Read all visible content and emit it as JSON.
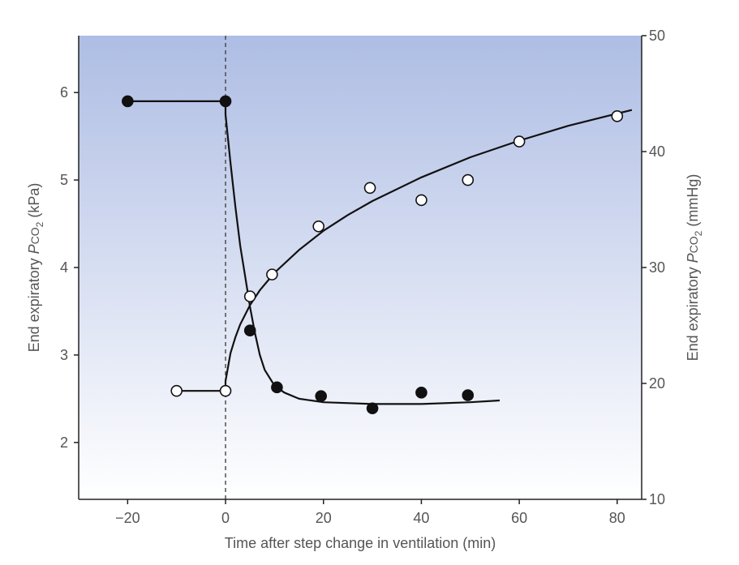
{
  "chart_data": {
    "type": "scatter",
    "xlabel": "Time after step change in ventilation (min)",
    "ylabel_left": {
      "pre": "End expiratory ",
      "var": "P",
      "co": "CO",
      "sub": "2",
      "unit": " (kPa)"
    },
    "ylabel_right": {
      "pre": "End expiratory ",
      "var": "P",
      "co": "CO",
      "sub": "2",
      "unit": " (mmHg)"
    },
    "xlim": [
      -30,
      85
    ],
    "ylim_left": [
      1.35,
      6.65
    ],
    "ylim_right": [
      10,
      50
    ],
    "x_ticks": [
      -20,
      0,
      20,
      40,
      60,
      80
    ],
    "x_tick_labels": [
      "−20",
      "0",
      "20",
      "40",
      "60",
      "80"
    ],
    "y_left_ticks": [
      2,
      3,
      4,
      5,
      6
    ],
    "y_left_tick_labels": [
      "2",
      "3",
      "4",
      "5",
      "6"
    ],
    "y_right_ticks": [
      10,
      20,
      30,
      40,
      50
    ],
    "y_right_tick_labels": [
      "10",
      "20",
      "30",
      "40",
      "50"
    ],
    "vertical_reference_line_x": 0,
    "background": {
      "top": "#aebde4",
      "bottom": "#ffffff"
    },
    "series": [
      {
        "marker": "filled",
        "color": "#111111",
        "points": [
          {
            "x": -20,
            "y": 5.9
          },
          {
            "x": 0,
            "y": 5.9
          },
          {
            "x": 5,
            "y": 3.28
          },
          {
            "x": 10.5,
            "y": 2.63
          },
          {
            "x": 19.5,
            "y": 2.53
          },
          {
            "x": 30,
            "y": 2.39
          },
          {
            "x": 40,
            "y": 2.57
          },
          {
            "x": 49.5,
            "y": 2.54
          }
        ],
        "curve": [
          {
            "x": -20,
            "y": 5.9
          },
          {
            "x": 0,
            "y": 5.9
          },
          {
            "x": 0,
            "y": 5.75
          },
          {
            "x": 1,
            "y": 5.2
          },
          {
            "x": 2,
            "y": 4.7
          },
          {
            "x": 3,
            "y": 4.25
          },
          {
            "x": 4,
            "y": 3.9
          },
          {
            "x": 5,
            "y": 3.55
          },
          {
            "x": 6,
            "y": 3.25
          },
          {
            "x": 7,
            "y": 3.0
          },
          {
            "x": 8,
            "y": 2.83
          },
          {
            "x": 10,
            "y": 2.65
          },
          {
            "x": 12,
            "y": 2.57
          },
          {
            "x": 15,
            "y": 2.5
          },
          {
            "x": 20,
            "y": 2.46
          },
          {
            "x": 30,
            "y": 2.44
          },
          {
            "x": 40,
            "y": 2.44
          },
          {
            "x": 50,
            "y": 2.46
          },
          {
            "x": 56,
            "y": 2.48
          }
        ]
      },
      {
        "marker": "open",
        "color": "#111111",
        "points": [
          {
            "x": -10,
            "y": 2.59
          },
          {
            "x": 0,
            "y": 2.59
          },
          {
            "x": 5,
            "y": 3.67
          },
          {
            "x": 9.5,
            "y": 3.92
          },
          {
            "x": 19,
            "y": 4.47
          },
          {
            "x": 29.5,
            "y": 4.91
          },
          {
            "x": 40,
            "y": 4.77
          },
          {
            "x": 49.5,
            "y": 5.0
          },
          {
            "x": 60,
            "y": 5.44
          },
          {
            "x": 80,
            "y": 5.73
          }
        ],
        "curve": [
          {
            "x": -10,
            "y": 2.59
          },
          {
            "x": 0,
            "y": 2.59
          },
          {
            "x": 0,
            "y": 2.7
          },
          {
            "x": 1,
            "y": 3.02
          },
          {
            "x": 2,
            "y": 3.2
          },
          {
            "x": 3,
            "y": 3.35
          },
          {
            "x": 5,
            "y": 3.57
          },
          {
            "x": 7,
            "y": 3.74
          },
          {
            "x": 10,
            "y": 3.94
          },
          {
            "x": 15,
            "y": 4.2
          },
          {
            "x": 20,
            "y": 4.42
          },
          {
            "x": 25,
            "y": 4.6
          },
          {
            "x": 30,
            "y": 4.76
          },
          {
            "x": 40,
            "y": 5.03
          },
          {
            "x": 50,
            "y": 5.26
          },
          {
            "x": 60,
            "y": 5.45
          },
          {
            "x": 70,
            "y": 5.62
          },
          {
            "x": 80,
            "y": 5.76
          },
          {
            "x": 83,
            "y": 5.8
          }
        ]
      }
    ]
  }
}
